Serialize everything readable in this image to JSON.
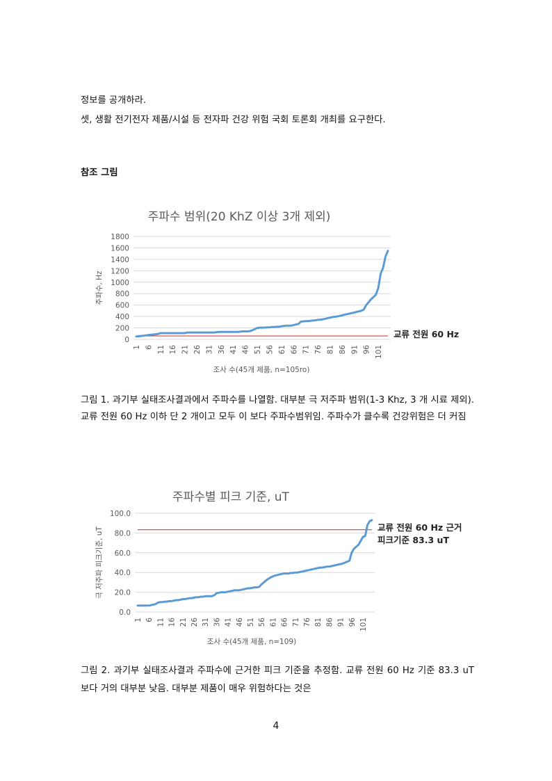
{
  "doc": {
    "line1": "정보를 공개하라.",
    "line2": "셋, 생활 전기전자 제품/시설 등 전자파 건강 위험 국회 토론회 개최를 요구한다.",
    "ref_heading": "참조 그림",
    "caption1": "그림 1. 과기부 실태조사결과에서 주파수를 나열함. 대부분 극 저주파 범위(1-3 Khz, 3 개 시료 제외). 교류 전원 60 Hz 이하 단 2 개이고 모두 이 보다 주파수범위임. 주파수가 클수록 건강위험은 더 커짐",
    "caption2": "그림 2. 과기부 실태조사결과 주파수에 근거한 피크 기준을 추정함. 교류 전원 60 Hz 기준 83.3 uT 보다 거의 대부분 낮음. 대부분 제품이 매우 위험하다는 것은",
    "page_number": "4"
  },
  "colors": {
    "series": "#5b9bd5",
    "reference": "#e03c3c",
    "grid": "#d9d9d9",
    "text": "#595959"
  },
  "chart_data": [
    {
      "type": "line",
      "title": "주파수 범위(20 KhZ 이상 3개 제외)",
      "xlabel": "조사 수(45개 제품, n=105ro)",
      "ylabel": "주파수, Hz",
      "ylim": [
        0,
        1800
      ],
      "yticks": [
        "0",
        "200",
        "400",
        "600",
        "800",
        "1000",
        "1200",
        "1400",
        "1600",
        "1800"
      ],
      "xticks": [
        "1",
        "6",
        "11",
        "16",
        "21",
        "26",
        "31",
        "36",
        "41",
        "46",
        "51",
        "56",
        "61",
        "66",
        "71",
        "76",
        "81",
        "86",
        "91",
        "96",
        "101"
      ],
      "grid": true,
      "reference_label": "교류 전원 60 Hz",
      "x": [
        1,
        2,
        3,
        4,
        5,
        6,
        7,
        8,
        9,
        10,
        11,
        12,
        13,
        14,
        15,
        16,
        17,
        18,
        19,
        20,
        21,
        22,
        23,
        24,
        25,
        26,
        27,
        28,
        29,
        30,
        31,
        32,
        33,
        34,
        35,
        36,
        37,
        38,
        39,
        40,
        41,
        42,
        43,
        44,
        45,
        46,
        47,
        48,
        49,
        50,
        51,
        52,
        53,
        54,
        55,
        56,
        57,
        58,
        59,
        60,
        61,
        62,
        63,
        64,
        65,
        66,
        67,
        68,
        69,
        70,
        71,
        72,
        73,
        74,
        75,
        76,
        77,
        78,
        79,
        80,
        81,
        82,
        83,
        84,
        85,
        86,
        87,
        88,
        89,
        90,
        91,
        92,
        93,
        94,
        95,
        96,
        97,
        98,
        99,
        100,
        101,
        102,
        103,
        104,
        105
      ],
      "series": [
        {
          "values": [
            50,
            55,
            60,
            65,
            70,
            75,
            80,
            85,
            90,
            95,
            110,
            110,
            110,
            110,
            110,
            110,
            110,
            110,
            110,
            110,
            110,
            120,
            120,
            120,
            120,
            120,
            120,
            120,
            120,
            120,
            120,
            120,
            120,
            125,
            130,
            130,
            130,
            130,
            130,
            130,
            130,
            130,
            130,
            135,
            140,
            140,
            140,
            145,
            160,
            180,
            200,
            205,
            205,
            205,
            210,
            210,
            215,
            215,
            220,
            220,
            230,
            235,
            240,
            240,
            240,
            250,
            260,
            270,
            310,
            315,
            320,
            320,
            325,
            330,
            335,
            340,
            345,
            350,
            360,
            370,
            380,
            390,
            395,
            400,
            410,
            420,
            430,
            440,
            450,
            460,
            470,
            480,
            490,
            500,
            520,
            600,
            650,
            700,
            740,
            780,
            900,
            1150,
            1250,
            1450,
            1550
          ]
        },
        {
          "values": [
            60,
            60,
            60,
            60,
            60,
            60,
            60,
            60,
            60,
            60,
            60,
            60,
            60,
            60,
            60,
            60,
            60,
            60,
            60,
            60,
            60,
            60,
            60,
            60,
            60,
            60,
            60,
            60,
            60,
            60,
            60,
            60,
            60,
            60,
            60,
            60,
            60,
            60,
            60,
            60,
            60,
            60,
            60,
            60,
            60,
            60,
            60,
            60,
            60,
            60,
            60,
            60,
            60,
            60,
            60,
            60,
            60,
            60,
            60,
            60,
            60,
            60,
            60,
            60,
            60,
            60,
            60,
            60,
            60,
            60,
            60,
            60,
            60,
            60,
            60,
            60,
            60,
            60,
            60,
            60,
            60,
            60,
            60,
            60,
            60,
            60,
            60,
            60,
            60,
            60,
            60,
            60,
            60,
            60,
            60,
            60,
            60,
            60,
            60,
            60,
            60,
            60,
            60,
            60,
            60
          ]
        }
      ]
    },
    {
      "type": "line",
      "title": "주파수별 피크 기준, uT",
      "xlabel": "조사 수(45개 제품, n=109)",
      "ylabel": "극 저주파 피크기준, uT",
      "ylim": [
        0,
        100
      ],
      "yticks": [
        "0.0",
        "20.0",
        "40.0",
        "60.0",
        "80.0",
        "100.0"
      ],
      "xticks": [
        "1",
        "6",
        "11",
        "16",
        "21",
        "26",
        "31",
        "36",
        "41",
        "46",
        "51",
        "56",
        "61",
        "66",
        "71",
        "76",
        "81",
        "86",
        "91",
        "96",
        "101"
      ],
      "grid": true,
      "reference_label_1": "교류 전원 60 Hz 근거",
      "reference_label_2": "피크기준 83.3 uT",
      "x": [
        1,
        2,
        3,
        4,
        5,
        6,
        7,
        8,
        9,
        10,
        11,
        12,
        13,
        14,
        15,
        16,
        17,
        18,
        19,
        20,
        21,
        22,
        23,
        24,
        25,
        26,
        27,
        28,
        29,
        30,
        31,
        32,
        33,
        34,
        35,
        36,
        37,
        38,
        39,
        40,
        41,
        42,
        43,
        44,
        45,
        46,
        47,
        48,
        49,
        50,
        51,
        52,
        53,
        54,
        55,
        56,
        57,
        58,
        59,
        60,
        61,
        62,
        63,
        64,
        65,
        66,
        67,
        68,
        69,
        70,
        71,
        72,
        73,
        74,
        75,
        76,
        77,
        78,
        79,
        80,
        81,
        82,
        83,
        84,
        85,
        86,
        87,
        88,
        89,
        90,
        91,
        92,
        93,
        94,
        95,
        96,
        97,
        98,
        99,
        100,
        101,
        102,
        103,
        104,
        105
      ],
      "series": [
        {
          "values": [
            6.5,
            6.5,
            6.5,
            6.5,
            6.5,
            6.5,
            7,
            7.5,
            8,
            9.5,
            10,
            10,
            10.5,
            10.5,
            11,
            11,
            11.5,
            12,
            12,
            12.5,
            13,
            13,
            13.5,
            14,
            14,
            14.5,
            15,
            15,
            15.5,
            15.5,
            16,
            16,
            16,
            16,
            17,
            19,
            19.5,
            20,
            20,
            20,
            20.5,
            21,
            21.5,
            22,
            22,
            22,
            22.5,
            23,
            23.5,
            24,
            24,
            24.5,
            25,
            25,
            25.5,
            28,
            30,
            32,
            33.5,
            35,
            36,
            37,
            37.5,
            38,
            38.5,
            39,
            39,
            39,
            39.5,
            39.5,
            40,
            40,
            40.5,
            41,
            41.5,
            42,
            42.5,
            43,
            43.5,
            44,
            44.5,
            45,
            45,
            45.5,
            46,
            46,
            46.5,
            47,
            47.5,
            48,
            48.5,
            49,
            50,
            51,
            52,
            60,
            64,
            66,
            68,
            72,
            76,
            77,
            88,
            92,
            93
          ]
        },
        {
          "values": [
            83.3,
            83.3,
            83.3,
            83.3,
            83.3,
            83.3,
            83.3,
            83.3,
            83.3,
            83.3,
            83.3,
            83.3,
            83.3,
            83.3,
            83.3,
            83.3,
            83.3,
            83.3,
            83.3,
            83.3,
            83.3,
            83.3,
            83.3,
            83.3,
            83.3,
            83.3,
            83.3,
            83.3,
            83.3,
            83.3,
            83.3,
            83.3,
            83.3,
            83.3,
            83.3,
            83.3,
            83.3,
            83.3,
            83.3,
            83.3,
            83.3,
            83.3,
            83.3,
            83.3,
            83.3,
            83.3,
            83.3,
            83.3,
            83.3,
            83.3,
            83.3,
            83.3,
            83.3,
            83.3,
            83.3,
            83.3,
            83.3,
            83.3,
            83.3,
            83.3,
            83.3,
            83.3,
            83.3,
            83.3,
            83.3,
            83.3,
            83.3,
            83.3,
            83.3,
            83.3,
            83.3,
            83.3,
            83.3,
            83.3,
            83.3,
            83.3,
            83.3,
            83.3,
            83.3,
            83.3,
            83.3,
            83.3,
            83.3,
            83.3,
            83.3,
            83.3,
            83.3,
            83.3,
            83.3,
            83.3,
            83.3,
            83.3,
            83.3,
            83.3,
            83.3,
            83.3,
            83.3,
            83.3,
            83.3,
            83.3,
            83.3,
            83.3,
            83.3,
            83.3,
            83.3
          ]
        }
      ]
    }
  ]
}
